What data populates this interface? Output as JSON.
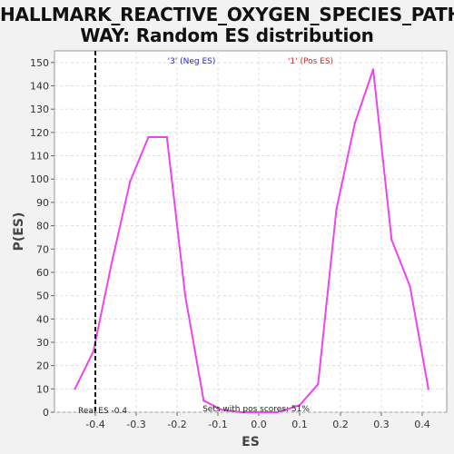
{
  "chart_data": {
    "type": "line",
    "title_line1": "HALLMARK_REACTIVE_OXYGEN_SPECIES_PATH",
    "title_line2": "WAY: Random ES distribution",
    "xlabel": "ES",
    "ylabel": "P(ES)",
    "xlim": [
      -0.5,
      0.46
    ],
    "ylim": [
      0,
      155
    ],
    "x_ticks": [
      -0.4,
      -0.3,
      -0.2,
      -0.1,
      0.0,
      0.1,
      0.2,
      0.3,
      0.4
    ],
    "x_tick_labels": [
      "-0.4",
      "-0.3",
      "-0.2",
      "-0.1",
      "0.0",
      "0.1",
      "0.2",
      "0.3",
      "0.4"
    ],
    "y_ticks": [
      0,
      10,
      20,
      30,
      40,
      50,
      60,
      70,
      80,
      90,
      100,
      110,
      120,
      130,
      140,
      150
    ],
    "y_tick_labels": [
      "0",
      "10",
      "20",
      "30",
      "40",
      "50",
      "60",
      "70",
      "80",
      "90",
      "100",
      "110",
      "120",
      "130",
      "140",
      "150"
    ],
    "grid": true,
    "series": [
      {
        "color": "#ee44ee",
        "x": [
          -0.45,
          -0.405,
          -0.36,
          -0.315,
          -0.27,
          -0.225,
          -0.18,
          -0.135,
          -0.09,
          -0.045,
          0.0,
          0.045,
          0.1,
          0.145,
          0.19,
          0.235,
          0.28,
          0.325,
          0.37,
          0.415
        ],
        "y": [
          10,
          26,
          64,
          99,
          118,
          118,
          50,
          5,
          1,
          0,
          0,
          0,
          3,
          12,
          87,
          124,
          147,
          74,
          54,
          10
        ]
      }
    ],
    "legend": [
      {
        "label": "'3' (Neg ES)",
        "color": "#2222dd"
      },
      {
        "label": "'1' (Pos ES)",
        "color": "#dd2222"
      }
    ],
    "real_es": {
      "value": -0.4,
      "label": "Real ES -0.4"
    },
    "annotation": "Sets with pos scores: 51%"
  }
}
